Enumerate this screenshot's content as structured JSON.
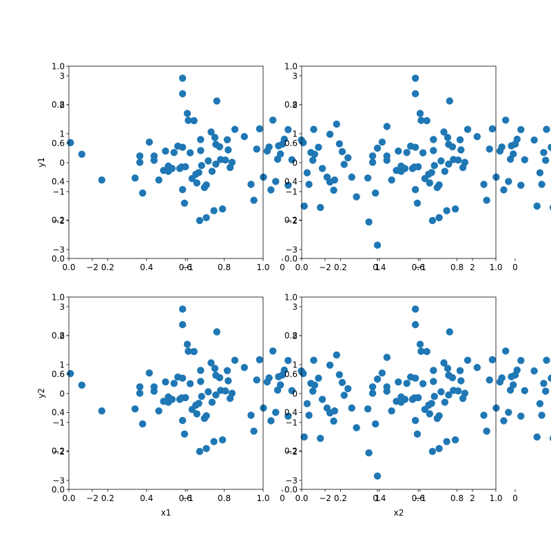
{
  "chart_data": {
    "type": "scatter",
    "layout": "2x2 scatter matrix",
    "variables": [
      "x1",
      "x2",
      "y1",
      "y2"
    ],
    "placeholder_axis_ticks": [
      "0.0",
      "0.2",
      "0.4",
      "0.6",
      "0.8",
      "1.0"
    ],
    "xlim": [
      -2.7,
      2.1
    ],
    "ylim": [
      -3.3,
      3.3
    ],
    "xticks": [
      "−2",
      "−1",
      "0",
      "1",
      "2"
    ],
    "yticks": [
      "−3",
      "−2",
      "−1",
      "0",
      "1",
      "2",
      "3"
    ],
    "grid": false,
    "color": "#1f77b4",
    "points": [
      [
        -2.23,
        0.69
      ],
      [
        -2.11,
        0.29
      ],
      [
        -1.9,
        -0.6
      ],
      [
        -1.55,
        -0.53
      ],
      [
        -1.5,
        0.23
      ],
      [
        -1.5,
        0.01
      ],
      [
        -1.47,
        -1.05
      ],
      [
        -1.4,
        0.71
      ],
      [
        -1.35,
        0.23
      ],
      [
        -1.35,
        0.08
      ],
      [
        -1.3,
        -0.6
      ],
      [
        -1.25,
        -0.27
      ],
      [
        -1.23,
        0.4
      ],
      [
        -1.2,
        -0.12
      ],
      [
        -1.2,
        -0.3
      ],
      [
        -1.16,
        -0.2
      ],
      [
        -1.14,
        0.35
      ],
      [
        -1.1,
        0.57
      ],
      [
        -1.08,
        -0.2
      ],
      [
        -1.06,
        -0.15
      ],
      [
        -1.05,
        2.92
      ],
      [
        -1.05,
        2.38
      ],
      [
        -1.05,
        0.53
      ],
      [
        -1.05,
        -0.93
      ],
      [
        -1.03,
        -1.4
      ],
      [
        -1.02,
        -0.14
      ],
      [
        -1.0,
        1.7
      ],
      [
        -0.99,
        1.46
      ],
      [
        -0.97,
        0.34
      ],
      [
        -0.95,
        -0.55
      ],
      [
        -0.93,
        1.45
      ],
      [
        -0.91,
        -0.4
      ],
      [
        -0.9,
        -0.7
      ],
      [
        -0.88,
        -0.34
      ],
      [
        -0.87,
        -2.0
      ],
      [
        -0.86,
        0.8
      ],
      [
        -0.86,
        0.42
      ],
      [
        -0.85,
        -0.1
      ],
      [
        -0.82,
        -0.86
      ],
      [
        -0.8,
        -0.77
      ],
      [
        -0.8,
        -1.9
      ],
      [
        -0.78,
        0.06
      ],
      [
        -0.75,
        1.06
      ],
      [
        -0.74,
        -0.3
      ],
      [
        -0.72,
        -1.66
      ],
      [
        -0.71,
        0.87
      ],
      [
        -0.7,
        0.63
      ],
      [
        -0.7,
        -0.05
      ],
      [
        -0.69,
        2.13
      ],
      [
        -0.66,
        0.55
      ],
      [
        -0.65,
        0.11
      ],
      [
        -0.63,
        -1.6
      ],
      [
        -0.6,
        0.09
      ],
      [
        -0.58,
        0.79
      ],
      [
        -0.57,
        0.44
      ],
      [
        -0.55,
        -0.17
      ],
      [
        -0.53,
        0.01
      ],
      [
        -0.5,
        1.15
      ],
      [
        -0.4,
        0.9
      ],
      [
        -0.33,
        -0.75
      ],
      [
        -0.3,
        -1.3
      ],
      [
        -0.27,
        0.47
      ],
      [
        -0.24,
        1.17
      ],
      [
        -0.2,
        -0.5
      ],
      [
        -0.16,
        0.4
      ],
      [
        -0.14,
        0.54
      ],
      [
        -0.12,
        -0.94
      ],
      [
        -0.1,
        1.47
      ],
      [
        -0.07,
        -0.65
      ],
      [
        -0.05,
        0.12
      ],
      [
        -0.04,
        0.58
      ],
      [
        -0.02,
        0.3
      ],
      [
        0.0,
        0.64
      ],
      [
        0.02,
        0.81
      ],
      [
        0.06,
        -0.78
      ],
      [
        0.06,
        1.14
      ],
      [
        0.1,
        0.1
      ],
      [
        0.2,
        0.78
      ],
      [
        0.23,
        -1.5
      ],
      [
        0.26,
        -0.35
      ],
      [
        0.28,
        -0.75
      ],
      [
        0.3,
        0.35
      ],
      [
        0.32,
        0.08
      ],
      [
        0.33,
        1.15
      ],
      [
        0.38,
        0.53
      ],
      [
        0.4,
        -1.55
      ],
      [
        0.42,
        -0.2
      ],
      [
        0.47,
        -0.5
      ],
      [
        0.5,
        -0.67
      ],
      [
        0.5,
        0.98
      ],
      [
        0.54,
        -0.95
      ],
      [
        0.57,
        1.33
      ],
      [
        0.6,
        0.65
      ],
      [
        0.63,
        0.38
      ],
      [
        0.65,
        -0.06
      ],
      [
        0.69,
        0.17
      ],
      [
        0.73,
        -0.5
      ],
      [
        0.78,
        -1.18
      ],
      [
        0.91,
        -2.05
      ],
      [
        1.0,
        -2.85
      ],
      [
        1.0,
        0.5
      ],
      [
        1.1,
        1.25
      ]
    ],
    "points_coverage": "approximate: many points hidden by overlap and estimated"
  },
  "panels": [
    {
      "xlabel": "",
      "ylabel": "y1"
    },
    {
      "xlabel": "",
      "ylabel": ""
    },
    {
      "xlabel": "x1",
      "ylabel": "y2"
    },
    {
      "xlabel": "x2",
      "ylabel": ""
    }
  ]
}
